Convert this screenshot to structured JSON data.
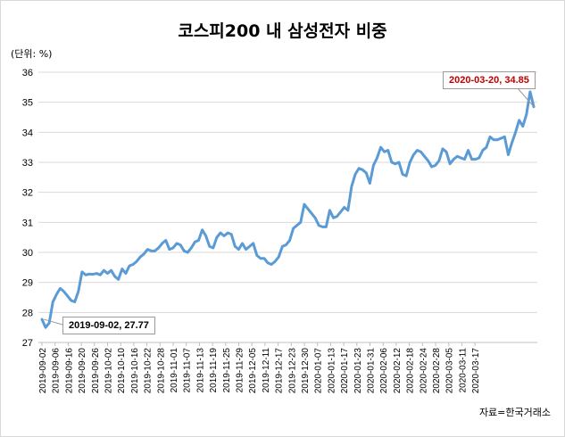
{
  "chart_data": {
    "type": "line",
    "title": "코스피200 내 삼성전자 비중",
    "unit_label": "(단위: %)",
    "source": "자료=한국거래소",
    "ylim": [
      27,
      36
    ],
    "yticks": [
      27,
      28,
      29,
      30,
      31,
      32,
      33,
      34,
      35,
      36
    ],
    "grid": true,
    "line_color": "#5b9bd5",
    "x_tick_labels": [
      "2019-09-02",
      "2019-09-06",
      "2019-09-16",
      "2019-09-20",
      "2019-09-26",
      "2019-10-02",
      "2019-10-10",
      "2019-10-16",
      "2019-10-22",
      "2019-10-28",
      "2019-11-01",
      "2019-11-07",
      "2019-11-13",
      "2019-11-19",
      "2019-11-25",
      "2019-11-29",
      "2019-12-05",
      "2019-12-11",
      "2019-12-17",
      "2019-12-23",
      "2019-12-30",
      "2020-01-07",
      "2020-01-13",
      "2020-01-17",
      "2020-01-23",
      "2020-01-31",
      "2020-02-06",
      "2020-02-12",
      "2020-02-18",
      "2020-02-24",
      "2020-02-28",
      "2020-03-05",
      "2020-03-11",
      "2020-03-17"
    ],
    "series": [
      {
        "values": [
          27.77,
          27.5,
          27.65,
          28.35,
          28.6,
          28.8,
          28.7,
          28.55,
          28.4,
          28.35,
          28.7,
          29.35,
          29.25,
          29.28,
          29.27,
          29.3,
          29.25,
          29.4,
          29.3,
          29.4,
          29.2,
          29.1,
          29.45,
          29.3,
          29.55,
          29.6,
          29.7,
          29.85,
          29.95,
          30.1,
          30.05,
          30.05,
          30.15,
          30.3,
          30.4,
          30.1,
          30.15,
          30.3,
          30.25,
          30.05,
          30.0,
          30.15,
          30.35,
          30.4,
          30.75,
          30.55,
          30.2,
          30.15,
          30.5,
          30.65,
          30.55,
          30.65,
          30.6,
          30.2,
          30.1,
          30.3,
          30.1,
          30.2,
          30.3,
          29.9,
          29.8,
          29.8,
          29.65,
          29.6,
          29.7,
          29.85,
          30.2,
          30.25,
          30.4,
          30.8,
          30.9,
          31.0,
          31.6,
          31.45,
          31.3,
          31.15,
          30.9,
          30.85,
          30.85,
          31.4,
          31.15,
          31.2,
          31.35,
          31.5,
          31.4,
          32.2,
          32.6,
          32.8,
          32.75,
          32.65,
          32.3,
          32.9,
          33.15,
          33.5,
          33.35,
          33.4,
          33.0,
          32.95,
          33.0,
          32.6,
          32.55,
          33.0,
          33.25,
          33.4,
          33.35,
          33.2,
          33.05,
          32.85,
          32.9,
          33.05,
          33.45,
          33.35,
          32.95,
          33.1,
          33.2,
          33.15,
          33.1,
          33.4,
          33.1,
          33.1,
          33.15,
          33.4,
          33.5,
          33.85,
          33.75,
          33.75,
          33.8,
          33.85,
          33.25,
          33.65,
          34.0,
          34.4,
          34.2,
          34.6,
          35.35,
          34.85
        ]
      }
    ],
    "annotations": [
      {
        "text": "2020-03-20, 34.85",
        "color": "#c00000"
      },
      {
        "text": "2019-09-02, 27.77",
        "color": "#000000"
      }
    ]
  }
}
